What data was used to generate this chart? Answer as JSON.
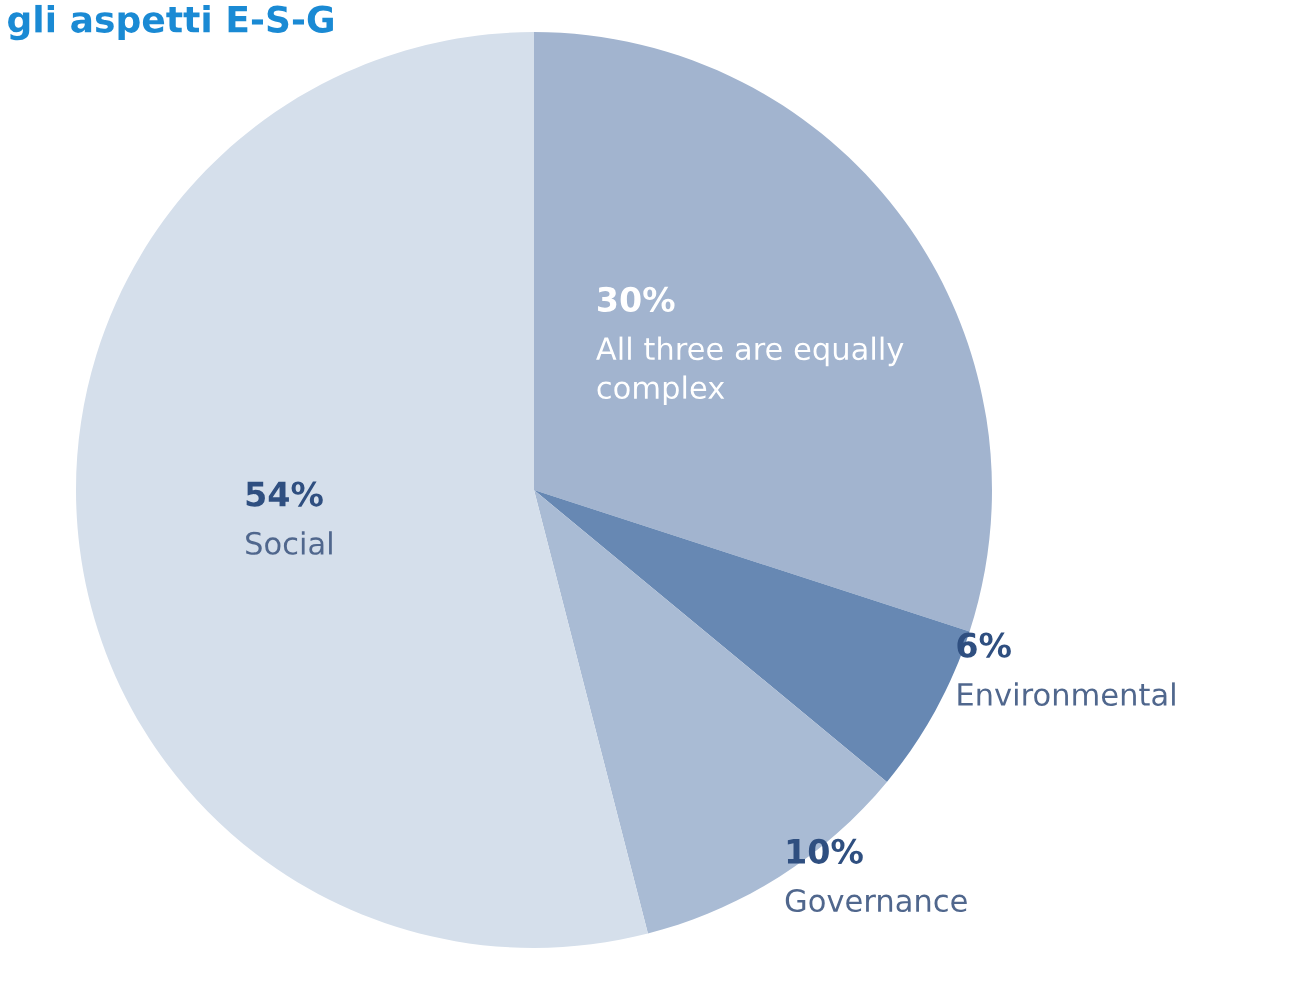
{
  "chart_data": {
    "type": "pie",
    "title": "gli aspetti E-S-G",
    "categories": [
      "All three are equally complex",
      "Environmental",
      "Governance",
      "Social"
    ],
    "values": [
      30,
      6,
      10,
      54
    ],
    "value_labels": [
      "30%",
      "6%",
      "10%",
      "54%"
    ],
    "colors": [
      "#a2b4cf",
      "#6788b3",
      "#a9bbd4",
      "#d5dfeb"
    ],
    "legend": false
  }
}
